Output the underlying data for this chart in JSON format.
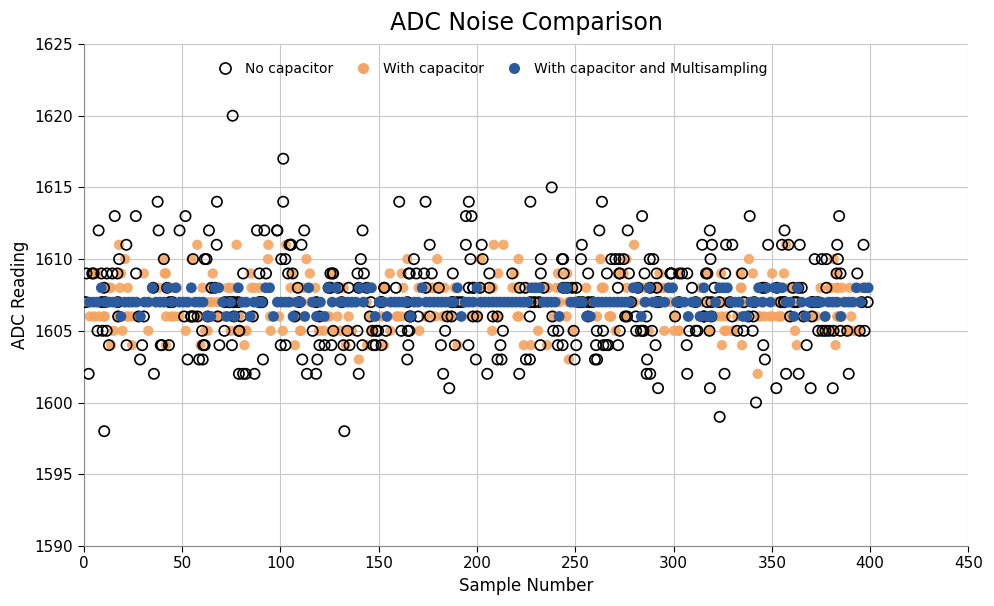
{
  "title": "ADC Noise Comparison",
  "xlabel": "Sample Number",
  "ylabel": "ADC Reading",
  "xlim": [
    0,
    450
  ],
  "ylim": [
    1590,
    1625
  ],
  "yticks": [
    1590,
    1595,
    1600,
    1605,
    1610,
    1615,
    1620,
    1625
  ],
  "xticks": [
    0,
    50,
    100,
    150,
    200,
    250,
    300,
    350,
    400,
    450
  ],
  "background_color": "#ffffff",
  "grid_color": "#c8c8c8",
  "series": {
    "no_cap": {
      "label": "No capacitor",
      "color": "black",
      "size": 55,
      "linewidth": 1.2,
      "zorder": 3
    },
    "with_cap": {
      "label": "With capacitor",
      "color": "#F4A460",
      "size": 55,
      "alpha": 0.9,
      "zorder": 2
    },
    "multisampling": {
      "label": "With capacitor and Multisampling",
      "color": "#2B5B9E",
      "size": 60,
      "zorder": 4
    }
  },
  "title_fontsize": 17,
  "label_fontsize": 12,
  "tick_fontsize": 11,
  "legend_fontsize": 10
}
